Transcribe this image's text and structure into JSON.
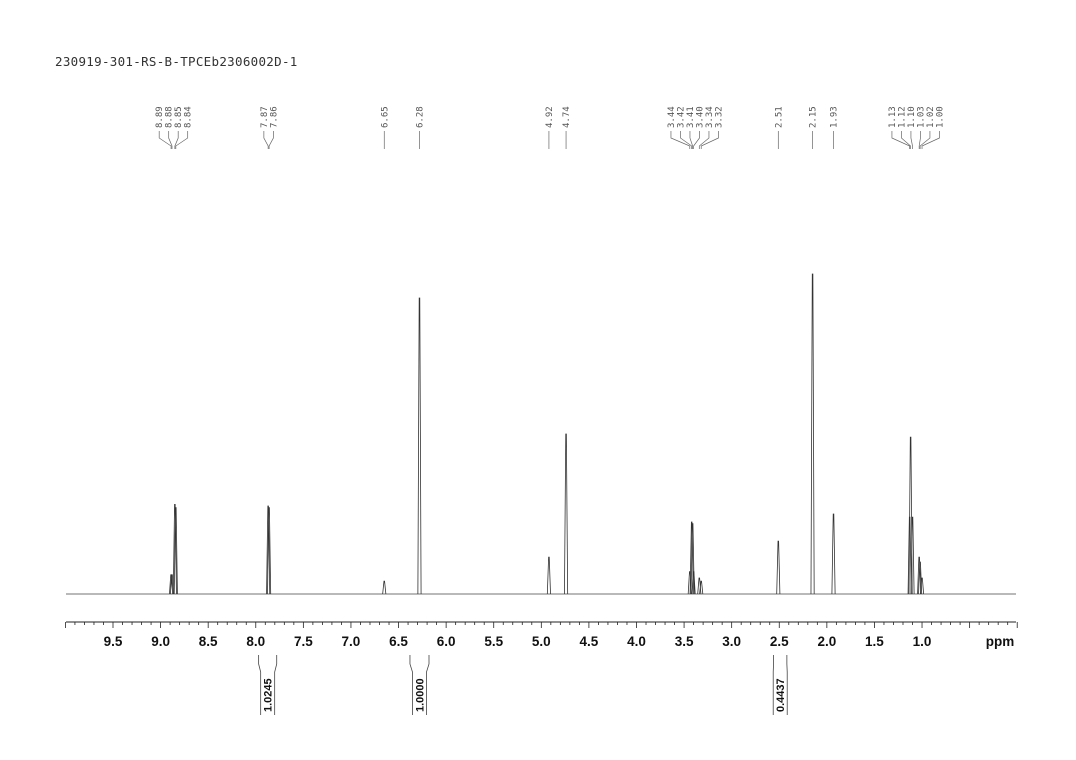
{
  "title": "230919-301-RS-B-TPCEb2306002D-1",
  "chart_data": {
    "type": "line",
    "title": "230919-301-RS-B-TPCEb2306002D-1",
    "xlabel": "ppm",
    "xlim": [
      10.0,
      0.0
    ],
    "x_reversed": true,
    "grid": false,
    "x_ticks": [
      "9.5",
      "9.0",
      "8.5",
      "8.0",
      "7.5",
      "7.0",
      "6.5",
      "6.0",
      "5.5",
      "5.0",
      "4.5",
      "4.0",
      "3.5",
      "3.0",
      "2.5",
      "2.0",
      "1.5",
      "1.0"
    ],
    "peaks": [
      {
        "ppm": 8.89,
        "label": "8.89",
        "intensity": 6
      },
      {
        "ppm": 8.88,
        "label": "8.88",
        "intensity": 6
      },
      {
        "ppm": 8.85,
        "label": "8.85",
        "intensity": 28
      },
      {
        "ppm": 8.84,
        "label": "8.84",
        "intensity": 27
      },
      {
        "ppm": 7.87,
        "label": "7.87",
        "intensity": 27.5
      },
      {
        "ppm": 7.86,
        "label": "7.86",
        "intensity": 27
      },
      {
        "ppm": 6.65,
        "label": "6.65",
        "intensity": 4
      },
      {
        "ppm": 6.28,
        "label": "6.28",
        "intensity": 92.5
      },
      {
        "ppm": 4.92,
        "label": "4.92",
        "intensity": 11.5
      },
      {
        "ppm": 4.74,
        "label": "4.74",
        "intensity": 50
      },
      {
        "ppm": 3.44,
        "label": "3.44",
        "intensity": 7
      },
      {
        "ppm": 3.42,
        "label": "3.42",
        "intensity": 22.5
      },
      {
        "ppm": 3.41,
        "label": "3.41",
        "intensity": 22
      },
      {
        "ppm": 3.4,
        "label": "3.40",
        "intensity": 7
      },
      {
        "ppm": 3.34,
        "label": "3.34",
        "intensity": 5
      },
      {
        "ppm": 3.32,
        "label": "3.32",
        "intensity": 4
      },
      {
        "ppm": 2.51,
        "label": "2.51",
        "intensity": 16.5
      },
      {
        "ppm": 2.15,
        "label": "2.15",
        "intensity": 100
      },
      {
        "ppm": 1.93,
        "label": "1.93",
        "intensity": 25
      },
      {
        "ppm": 1.13,
        "label": "1.13",
        "intensity": 24
      },
      {
        "ppm": 1.12,
        "label": "1.12",
        "intensity": 49
      },
      {
        "ppm": 1.1,
        "label": "1.10",
        "intensity": 24
      },
      {
        "ppm": 1.03,
        "label": "1.03",
        "intensity": 11.5
      },
      {
        "ppm": 1.02,
        "label": "1.02",
        "intensity": 10
      },
      {
        "ppm": 1.0,
        "label": "1.00",
        "intensity": 5
      }
    ],
    "integrals": [
      {
        "from": 7.97,
        "to": 7.78,
        "value": "1.0245"
      },
      {
        "from": 6.38,
        "to": 6.18,
        "value": "1.0000"
      },
      {
        "from": 2.56,
        "to": 2.42,
        "value": "0.4437"
      }
    ]
  }
}
